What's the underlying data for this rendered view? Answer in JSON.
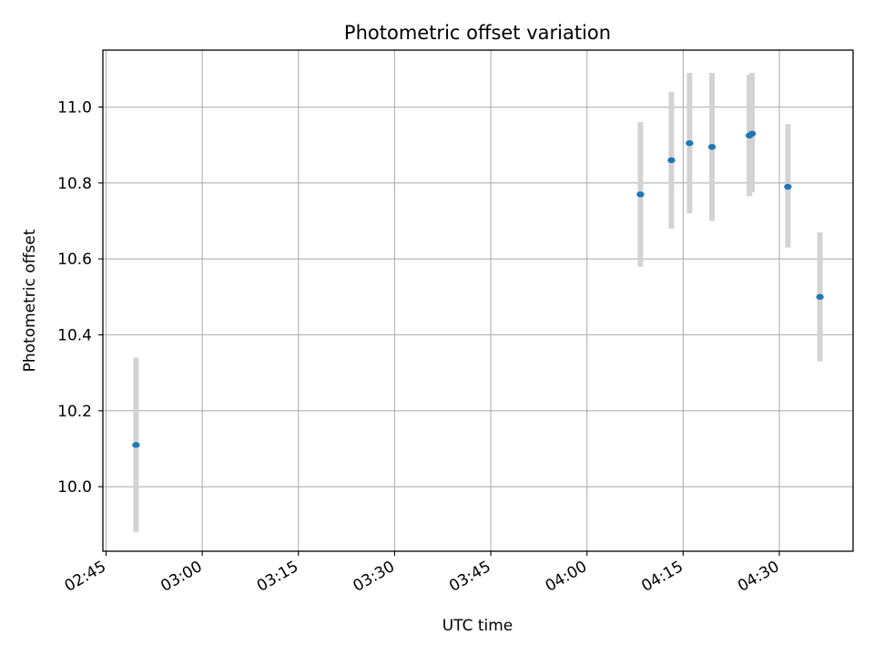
{
  "chart_data": {
    "type": "scatter",
    "title": "Photometric offset variation",
    "xlabel": "UTC time",
    "ylabel": "Photometric offset",
    "x_axis": {
      "unit": "UTC time of day",
      "range": [
        "02:44:30",
        "04:41:30"
      ],
      "ticks": [
        "02:45",
        "03:00",
        "03:15",
        "03:30",
        "03:45",
        "04:00",
        "04:15",
        "04:30"
      ]
    },
    "y_axis": {
      "range": [
        9.83,
        11.15
      ],
      "ticks": [
        "10.0",
        "10.2",
        "10.4",
        "10.6",
        "10.8",
        "11.0"
      ]
    },
    "grid": true,
    "error_bar_color": "#d3d3d3",
    "marker_color": "#1f77b4",
    "points": [
      {
        "time": "02:49:40",
        "y": 10.11,
        "err_low": 9.88,
        "err_high": 10.34
      },
      {
        "time": "04:08:20",
        "y": 10.77,
        "err_low": 10.58,
        "err_high": 10.96
      },
      {
        "time": "04:13:10",
        "y": 10.86,
        "err_low": 10.68,
        "err_high": 11.04
      },
      {
        "time": "04:16:00",
        "y": 10.905,
        "err_low": 10.72,
        "err_high": 11.09
      },
      {
        "time": "04:19:30",
        "y": 10.895,
        "err_low": 10.7,
        "err_high": 11.09
      },
      {
        "time": "04:25:20",
        "y": 10.925,
        "err_low": 10.765,
        "err_high": 11.085
      },
      {
        "time": "04:25:45",
        "y": 10.93,
        "err_low": 10.775,
        "err_high": 11.09
      },
      {
        "time": "04:31:20",
        "y": 10.79,
        "err_low": 10.63,
        "err_high": 10.955
      },
      {
        "time": "04:36:20",
        "y": 10.5,
        "err_low": 10.33,
        "err_high": 10.67
      }
    ]
  }
}
